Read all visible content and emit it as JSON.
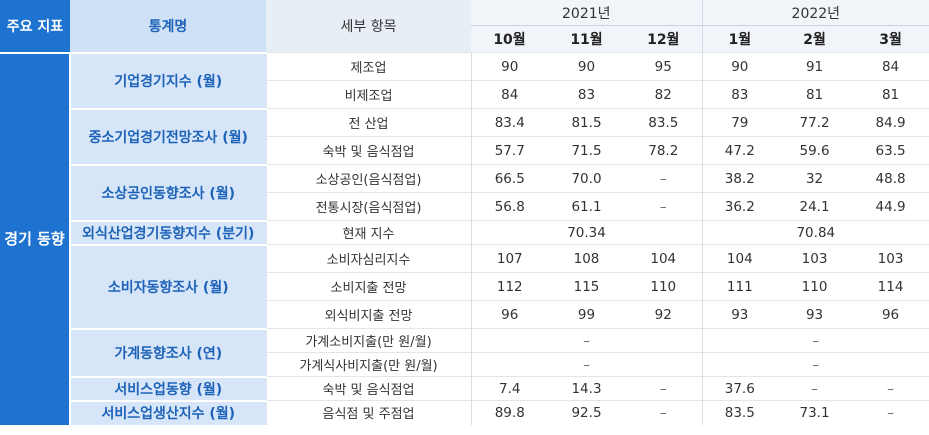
{
  "header": {
    "main_label": "주요 지표",
    "stat_label": "통계명",
    "item_label": "세부 항목",
    "years": [
      "2021년",
      "2022년"
    ],
    "months": [
      "10월",
      "11월",
      "12월",
      "1월",
      "2월",
      "3월"
    ]
  },
  "category": "경기 동향",
  "groups": [
    {
      "name": "기업경기지수 (월)",
      "rows": [
        {
          "item": "제조업",
          "values": [
            "90",
            "90",
            "95",
            "90",
            "91",
            "84"
          ]
        },
        {
          "item": "비제조업",
          "values": [
            "84",
            "83",
            "82",
            "83",
            "81",
            "81"
          ]
        }
      ]
    },
    {
      "name": "중소기업경기전망조사 (월)",
      "rows": [
        {
          "item": "전 산업",
          "values": [
            "83.4",
            "81.5",
            "83.5",
            "79",
            "77.2",
            "84.9"
          ]
        },
        {
          "item": "숙박 및 음식점업",
          "values": [
            "57.7",
            "71.5",
            "78.2",
            "47.2",
            "59.6",
            "63.5"
          ]
        }
      ]
    },
    {
      "name": "소상공인동향조사 (월)",
      "rows": [
        {
          "item": "소상공인(음식점업)",
          "values": [
            "66.5",
            "70.0",
            "–",
            "38.2",
            "32",
            "48.8"
          ]
        },
        {
          "item": "전통시장(음식점업)",
          "values": [
            "56.8",
            "61.1",
            "–",
            "36.2",
            "24.1",
            "44.9"
          ]
        }
      ]
    },
    {
      "name": "외식산업경기동향지수 (분기)",
      "rows": [
        {
          "item": "현재 지수",
          "merged": [
            "70.34",
            "70.84"
          ]
        }
      ]
    },
    {
      "name": "소비자동향조사 (월)",
      "rows": [
        {
          "item": "소비자심리지수",
          "values": [
            "107",
            "108",
            "104",
            "104",
            "103",
            "103"
          ]
        },
        {
          "item": "소비지출 전망",
          "values": [
            "112",
            "115",
            "110",
            "111",
            "110",
            "114"
          ]
        },
        {
          "item": "외식비지출 전망",
          "values": [
            "96",
            "99",
            "92",
            "93",
            "93",
            "96"
          ]
        }
      ]
    },
    {
      "name": "가계동향조사 (연)",
      "rows": [
        {
          "item": "가계소비지출(만 원/월)",
          "merged": [
            "–",
            "–"
          ]
        },
        {
          "item": "가계식사비지출(만 원/월)",
          "merged": [
            "–",
            "–"
          ]
        }
      ]
    },
    {
      "name": "서비스업동향 (월)",
      "rows": [
        {
          "item": "숙박 및 음식점업",
          "values": [
            "7.4",
            "14.3",
            "–",
            "37.6",
            "–",
            "–"
          ]
        }
      ]
    },
    {
      "name": "서비스업생산지수 (월)",
      "rows": [
        {
          "item": "음식점 및 주점업",
          "values": [
            "89.8",
            "92.5",
            "–",
            "83.5",
            "73.1",
            "–"
          ]
        }
      ]
    }
  ]
}
